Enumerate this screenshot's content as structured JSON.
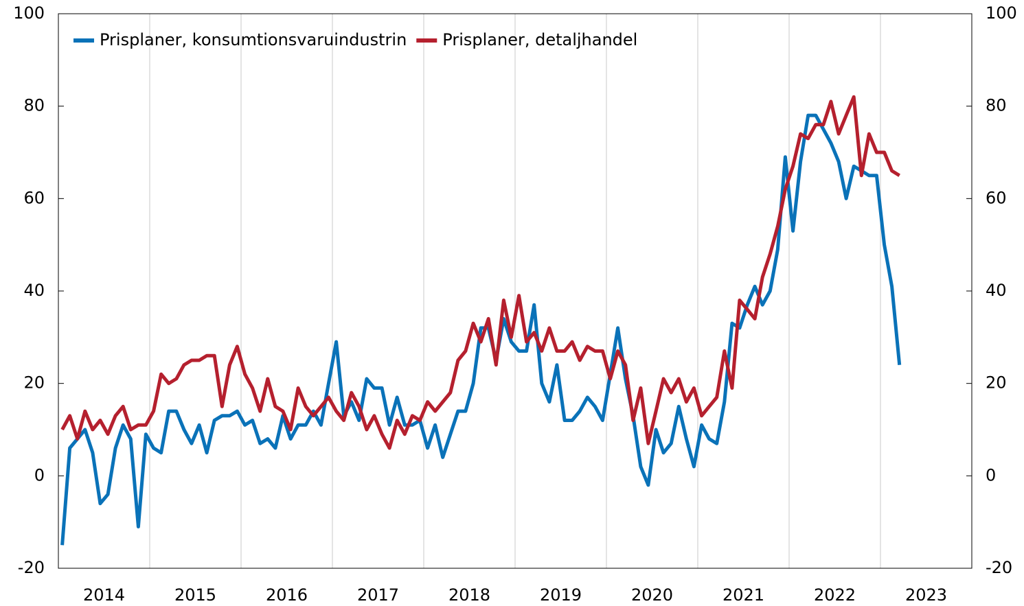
{
  "chart_data": {
    "type": "line",
    "xlim": [
      2014,
      2024
    ],
    "xticks": [
      2015,
      2016,
      2017,
      2018,
      2019,
      2020,
      2021,
      2022,
      2023
    ],
    "xtick_labels": [
      {
        "value": 2014.5,
        "label": "2014"
      },
      {
        "value": 2015.5,
        "label": "2015"
      },
      {
        "value": 2016.5,
        "label": "2016"
      },
      {
        "value": 2017.5,
        "label": "2017"
      },
      {
        "value": 2018.5,
        "label": "2018"
      },
      {
        "value": 2019.5,
        "label": "2019"
      },
      {
        "value": 2020.5,
        "label": "2020"
      },
      {
        "value": 2021.5,
        "label": "2021"
      },
      {
        "value": 2022.5,
        "label": "2022"
      },
      {
        "value": 2023.5,
        "label": "2023"
      }
    ],
    "ylim": [
      -20,
      100
    ],
    "yticks": [
      -20,
      0,
      20,
      40,
      60,
      80,
      100
    ],
    "y2lim": [
      -20,
      100
    ],
    "y2ticks": [
      -20,
      0,
      20,
      40,
      60,
      80,
      100
    ],
    "grid": true,
    "legend": "top-left",
    "x": [
      2014.042,
      2014.125,
      2014.208,
      2014.292,
      2014.375,
      2014.458,
      2014.542,
      2014.625,
      2014.708,
      2014.792,
      2014.875,
      2014.958,
      2015.042,
      2015.125,
      2015.208,
      2015.292,
      2015.375,
      2015.458,
      2015.542,
      2015.625,
      2015.708,
      2015.792,
      2015.875,
      2015.958,
      2016.042,
      2016.125,
      2016.208,
      2016.292,
      2016.375,
      2016.458,
      2016.542,
      2016.625,
      2016.708,
      2016.792,
      2016.875,
      2016.958,
      2017.042,
      2017.125,
      2017.208,
      2017.292,
      2017.375,
      2017.458,
      2017.542,
      2017.625,
      2017.708,
      2017.792,
      2017.875,
      2017.958,
      2018.042,
      2018.125,
      2018.208,
      2018.292,
      2018.375,
      2018.458,
      2018.542,
      2018.625,
      2018.708,
      2018.792,
      2018.875,
      2018.958,
      2019.042,
      2019.125,
      2019.208,
      2019.292,
      2019.375,
      2019.458,
      2019.542,
      2019.625,
      2019.708,
      2019.792,
      2019.875,
      2019.958,
      2020.042,
      2020.125,
      2020.208,
      2020.292,
      2020.375,
      2020.458,
      2020.542,
      2020.625,
      2020.708,
      2020.792,
      2020.875,
      2020.958,
      2021.042,
      2021.125,
      2021.208,
      2021.292,
      2021.375,
      2021.458,
      2021.542,
      2021.625,
      2021.708,
      2021.792,
      2021.875,
      2021.958,
      2022.042,
      2022.125,
      2022.208,
      2022.292,
      2022.375,
      2022.458,
      2022.542,
      2022.625,
      2022.708,
      2022.792,
      2022.875,
      2022.958,
      2023.042,
      2023.125,
      2023.208
    ],
    "series": [
      {
        "name": "Prisplaner, konsumtionsvaruindustrin",
        "color": "#0a72b8",
        "values": [
          -15,
          6,
          8,
          10,
          5,
          -6,
          -4,
          6,
          11,
          8,
          -11,
          9,
          6,
          5,
          14,
          14,
          10,
          7,
          11,
          5,
          12,
          13,
          13,
          14,
          11,
          12,
          7,
          8,
          6,
          13,
          8,
          11,
          11,
          14,
          11,
          20,
          29,
          13,
          16,
          12,
          21,
          19,
          19,
          11,
          17,
          11,
          11,
          12,
          6,
          11,
          4,
          9,
          14,
          14,
          20,
          32,
          32,
          25,
          34,
          29,
          27,
          27,
          37,
          20,
          16,
          24,
          12,
          12,
          14,
          17,
          15,
          12,
          22,
          32,
          21,
          13,
          2,
          -2,
          10,
          5,
          7,
          15,
          8,
          2,
          11,
          8,
          7,
          16,
          33,
          32,
          37,
          41,
          37,
          40,
          49,
          69,
          53,
          68,
          78,
          78,
          75,
          72,
          68,
          60,
          67,
          66,
          65,
          65,
          50,
          41,
          24
        ]
      },
      {
        "name": "Prisplaner, detaljhandel",
        "color": "#b5202e",
        "values": [
          10,
          13,
          8,
          14,
          10,
          12,
          9,
          13,
          15,
          10,
          11,
          11,
          14,
          22,
          20,
          21,
          24,
          25,
          25,
          26,
          26,
          15,
          24,
          28,
          22,
          19,
          14,
          21,
          15,
          14,
          10,
          19,
          15,
          13,
          15,
          17,
          14,
          12,
          18,
          15,
          10,
          13,
          9,
          6,
          12,
          9,
          13,
          12,
          16,
          14,
          16,
          18,
          25,
          27,
          33,
          29,
          34,
          24,
          38,
          30,
          39,
          29,
          31,
          27,
          32,
          27,
          27,
          29,
          25,
          28,
          27,
          27,
          21,
          27,
          24,
          12,
          19,
          7,
          14,
          21,
          18,
          21,
          16,
          19,
          13,
          15,
          17,
          27,
          19,
          38,
          36,
          34,
          43,
          48,
          54,
          62,
          67,
          74,
          73,
          76,
          76,
          81,
          74,
          78,
          82,
          65,
          74,
          70,
          70,
          66,
          65
        ]
      }
    ]
  }
}
